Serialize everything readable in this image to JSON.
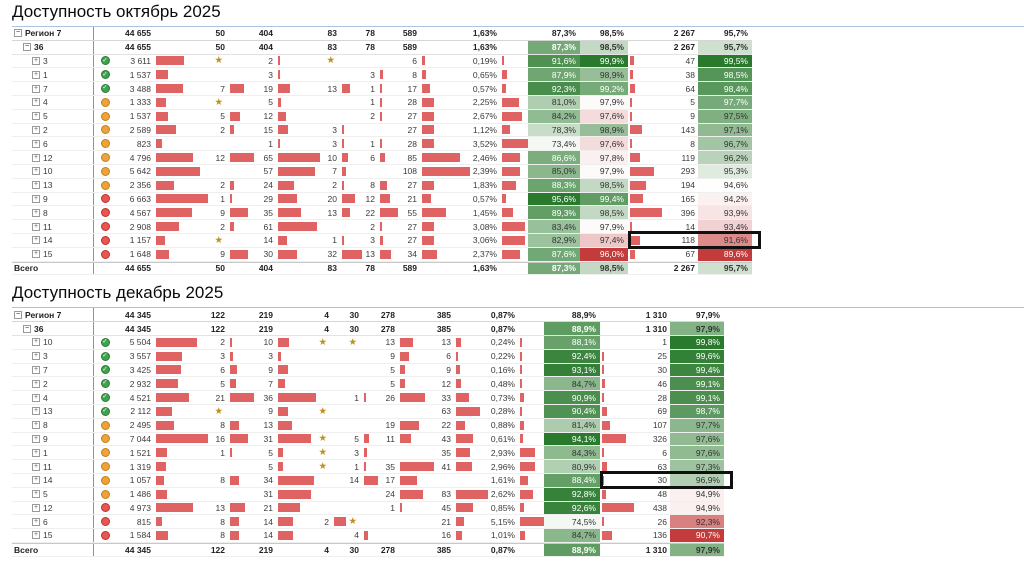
{
  "colors": {
    "bar": "#e06363",
    "status_green": "#3fa34d",
    "status_orange": "#eda33b",
    "status_red": "#e8564f",
    "scale_green_dark": "#2a7a2e",
    "scale_red_dark": "#c43b3b",
    "highlight_box": "#101010",
    "hierarchy_divider": "#7397c6"
  },
  "tables": [
    {
      "title": "Доступность октябрь 2025",
      "region_label": "Регион 7",
      "group_label": "36",
      "total_label": "Всего",
      "summary": {
        "value": "44 655",
        "cols": [
          "50",
          "404",
          "83",
          "78",
          "589"
        ],
        "p1": "1,63%",
        "p2": "87,3%",
        "p3": "98,5%",
        "cnt": "2 267",
        "p4": "95,7%"
      },
      "rows": [
        {
          "label": "3",
          "status": "green",
          "value": "3 611",
          "cols": [
            "★",
            "2",
            "★",
            "",
            "6"
          ],
          "p1": "0,19%",
          "p2": "91,6%",
          "p3": "99,9%",
          "cnt": "47",
          "p4": "99,5%"
        },
        {
          "label": "1",
          "status": "green",
          "value": "1 537",
          "cols": [
            "",
            "3",
            "",
            "3",
            "8"
          ],
          "p1": "0,65%",
          "p2": "87,9%",
          "p3": "98,9%",
          "cnt": "38",
          "p4": "98,5%"
        },
        {
          "label": "7",
          "status": "green",
          "value": "3 488",
          "cols": [
            "7",
            "19",
            "13",
            "1",
            "17"
          ],
          "p1": "0,57%",
          "p2": "92,3%",
          "p3": "99,2%",
          "cnt": "64",
          "p4": "98,4%"
        },
        {
          "label": "4",
          "status": "orange",
          "value": "1 333",
          "cols": [
            "★",
            "5",
            "",
            "1",
            "28"
          ],
          "p1": "2,25%",
          "p2": "81,0%",
          "p3": "97,9%",
          "cnt": "5",
          "p4": "97,7%"
        },
        {
          "label": "5",
          "status": "orange",
          "value": "1 537",
          "cols": [
            "5",
            "12",
            "",
            "2",
            "27"
          ],
          "p1": "2,67%",
          "p2": "84,2%",
          "p3": "97,6%",
          "cnt": "9",
          "p4": "97,5%"
        },
        {
          "label": "2",
          "status": "orange",
          "value": "2 589",
          "cols": [
            "2",
            "15",
            "3",
            "",
            "27"
          ],
          "p1": "1,12%",
          "p2": "78,3%",
          "p3": "98,9%",
          "cnt": "143",
          "p4": "97,1%"
        },
        {
          "label": "6",
          "status": "orange",
          "value": "823",
          "cols": [
            "",
            "1",
            "3",
            "1",
            "28"
          ],
          "p1": "3,52%",
          "p2": "73,4%",
          "p3": "97,6%",
          "cnt": "8",
          "p4": "96,7%"
        },
        {
          "label": "12",
          "status": "orange",
          "value": "4 796",
          "cols": [
            "12",
            "65",
            "10",
            "6",
            "85"
          ],
          "p1": "2,46%",
          "p2": "86,6%",
          "p3": "97,8%",
          "cnt": "119",
          "p4": "96,2%"
        },
        {
          "label": "10",
          "status": "orange",
          "value": "5 642",
          "cols": [
            "",
            "57",
            "7",
            "",
            "108"
          ],
          "p1": "2,39%",
          "p2": "85,0%",
          "p3": "97,9%",
          "cnt": "293",
          "p4": "95,3%"
        },
        {
          "label": "13",
          "status": "orange",
          "value": "2 356",
          "cols": [
            "2",
            "24",
            "2",
            "8",
            "27"
          ],
          "p1": "1,83%",
          "p2": "88,3%",
          "p3": "98,5%",
          "cnt": "194",
          "p4": "94,6%"
        },
        {
          "label": "9",
          "status": "red",
          "value": "6 663",
          "cols": [
            "1",
            "29",
            "20",
            "12",
            "21"
          ],
          "p1": "0,57%",
          "p2": "95,6%",
          "p3": "99,4%",
          "cnt": "165",
          "p4": "94,2%"
        },
        {
          "label": "8",
          "status": "red",
          "value": "4 567",
          "cols": [
            "9",
            "35",
            "13",
            "22",
            "55"
          ],
          "p1": "1,45%",
          "p2": "89,3%",
          "p3": "98,5%",
          "cnt": "396",
          "p4": "93,9%"
        },
        {
          "label": "11",
          "status": "red",
          "value": "2 908",
          "cols": [
            "2",
            "61",
            "",
            "2",
            "27"
          ],
          "p1": "3,08%",
          "p2": "83,4%",
          "p3": "97,9%",
          "cnt": "14",
          "p4": "93,4%"
        },
        {
          "label": "14",
          "status": "red",
          "value": "1 157",
          "cols": [
            "★",
            "14",
            "1",
            "3",
            "27"
          ],
          "p1": "3,06%",
          "p2": "82,9%",
          "p3": "97,4%",
          "cnt": "118",
          "p4": "91,6%",
          "highlight": true
        },
        {
          "label": "15",
          "status": "red",
          "value": "1 648",
          "cols": [
            "9",
            "30",
            "32",
            "13",
            "34"
          ],
          "p1": "2,37%",
          "p2": "87,6%",
          "p3": "96,0%",
          "cnt": "67",
          "p4": "89,6%"
        }
      ]
    },
    {
      "title": "Доступность декабрь 2025",
      "region_label": "Регион 7",
      "group_label": "36",
      "total_label": "Всего",
      "summary": {
        "value": "44 345",
        "cols": [
          "122",
          "219",
          "4",
          "30",
          "278",
          "385"
        ],
        "p1": "0,87%",
        "p2": "88,9%",
        "cnt": "1 310",
        "p4": "97,9%"
      },
      "rows": [
        {
          "label": "10",
          "status": "green",
          "value": "5 504",
          "cols": [
            "2",
            "10",
            "★",
            "★",
            "13",
            "13"
          ],
          "p1": "0,24%",
          "p2": "88,1%",
          "cnt": "1",
          "p4": "99,8%"
        },
        {
          "label": "3",
          "status": "green",
          "value": "3 557",
          "cols": [
            "3",
            "3",
            "",
            "",
            "9",
            "6"
          ],
          "p1": "0,22%",
          "p2": "92,4%",
          "cnt": "25",
          "p4": "99,6%"
        },
        {
          "label": "7",
          "status": "green",
          "value": "3 425",
          "cols": [
            "6",
            "9",
            "",
            "",
            "5",
            "9"
          ],
          "p1": "0,16%",
          "p2": "93,1%",
          "cnt": "30",
          "p4": "99,4%"
        },
        {
          "label": "2",
          "status": "green",
          "value": "2 932",
          "cols": [
            "5",
            "7",
            "",
            "",
            "5",
            "12"
          ],
          "p1": "0,48%",
          "p2": "84,7%",
          "cnt": "46",
          "p4": "99,1%"
        },
        {
          "label": "4",
          "status": "green",
          "value": "4 521",
          "cols": [
            "21",
            "36",
            "",
            "1",
            "26",
            "33"
          ],
          "p1": "0,73%",
          "p2": "90,9%",
          "cnt": "28",
          "p4": "99,1%"
        },
        {
          "label": "13",
          "status": "green",
          "value": "2 112",
          "cols": [
            "★",
            "9",
            "★",
            "",
            "",
            "63"
          ],
          "p1": "0,28%",
          "p2": "90,4%",
          "cnt": "69",
          "p4": "98,7%"
        },
        {
          "label": "8",
          "status": "orange",
          "value": "2 495",
          "cols": [
            "8",
            "13",
            "",
            "",
            "19",
            "22"
          ],
          "p1": "0,88%",
          "p2": "81,4%",
          "cnt": "107",
          "p4": "97,7%"
        },
        {
          "label": "9",
          "status": "orange",
          "value": "7 044",
          "cols": [
            "16",
            "31",
            "★",
            "5",
            "11",
            "43"
          ],
          "p1": "0,61%",
          "p2": "94,1%",
          "cnt": "326",
          "p4": "97,6%"
        },
        {
          "label": "1",
          "status": "orange",
          "value": "1 521",
          "cols": [
            "1",
            "5",
            "★",
            "3",
            "",
            "35"
          ],
          "p1": "2,93%",
          "p2": "84,3%",
          "cnt": "6",
          "p4": "97,6%"
        },
        {
          "label": "11",
          "status": "orange",
          "value": "1 319",
          "cols": [
            "",
            "5",
            "★",
            "1",
            "35",
            "41"
          ],
          "p1": "2,96%",
          "p2": "80,9%",
          "cnt": "63",
          "p4": "97,3%"
        },
        {
          "label": "14",
          "status": "orange",
          "value": "1 057",
          "cols": [
            "8",
            "34",
            "",
            "14",
            "17",
            ""
          ],
          "p1": "1,61%",
          "p2": "88,4%",
          "cnt": "30",
          "p4": "96,9%",
          "highlight": true
        },
        {
          "label": "5",
          "status": "orange",
          "value": "1 486",
          "cols": [
            "",
            "31",
            "",
            "",
            "24",
            "83"
          ],
          "p1": "2,62%",
          "p2": "92,8%",
          "cnt": "48",
          "p4": "94,9%"
        },
        {
          "label": "12",
          "status": "red",
          "value": "4 973",
          "cols": [
            "13",
            "21",
            "",
            "",
            "1",
            "45"
          ],
          "p1": "0,85%",
          "p2": "92,6%",
          "cnt": "438",
          "p4": "94,9%"
        },
        {
          "label": "6",
          "status": "red",
          "value": "815",
          "cols": [
            "8",
            "14",
            "2",
            "★",
            "",
            "21"
          ],
          "p1": "5,15%",
          "p2": "74,5%",
          "cnt": "26",
          "p4": "92,3%"
        },
        {
          "label": "15",
          "status": "red",
          "value": "1 584",
          "cols": [
            "8",
            "14",
            "",
            "4",
            "",
            "16"
          ],
          "p1": "1,01%",
          "p2": "84,7%",
          "cnt": "136",
          "p4": "90,7%"
        }
      ]
    }
  ]
}
